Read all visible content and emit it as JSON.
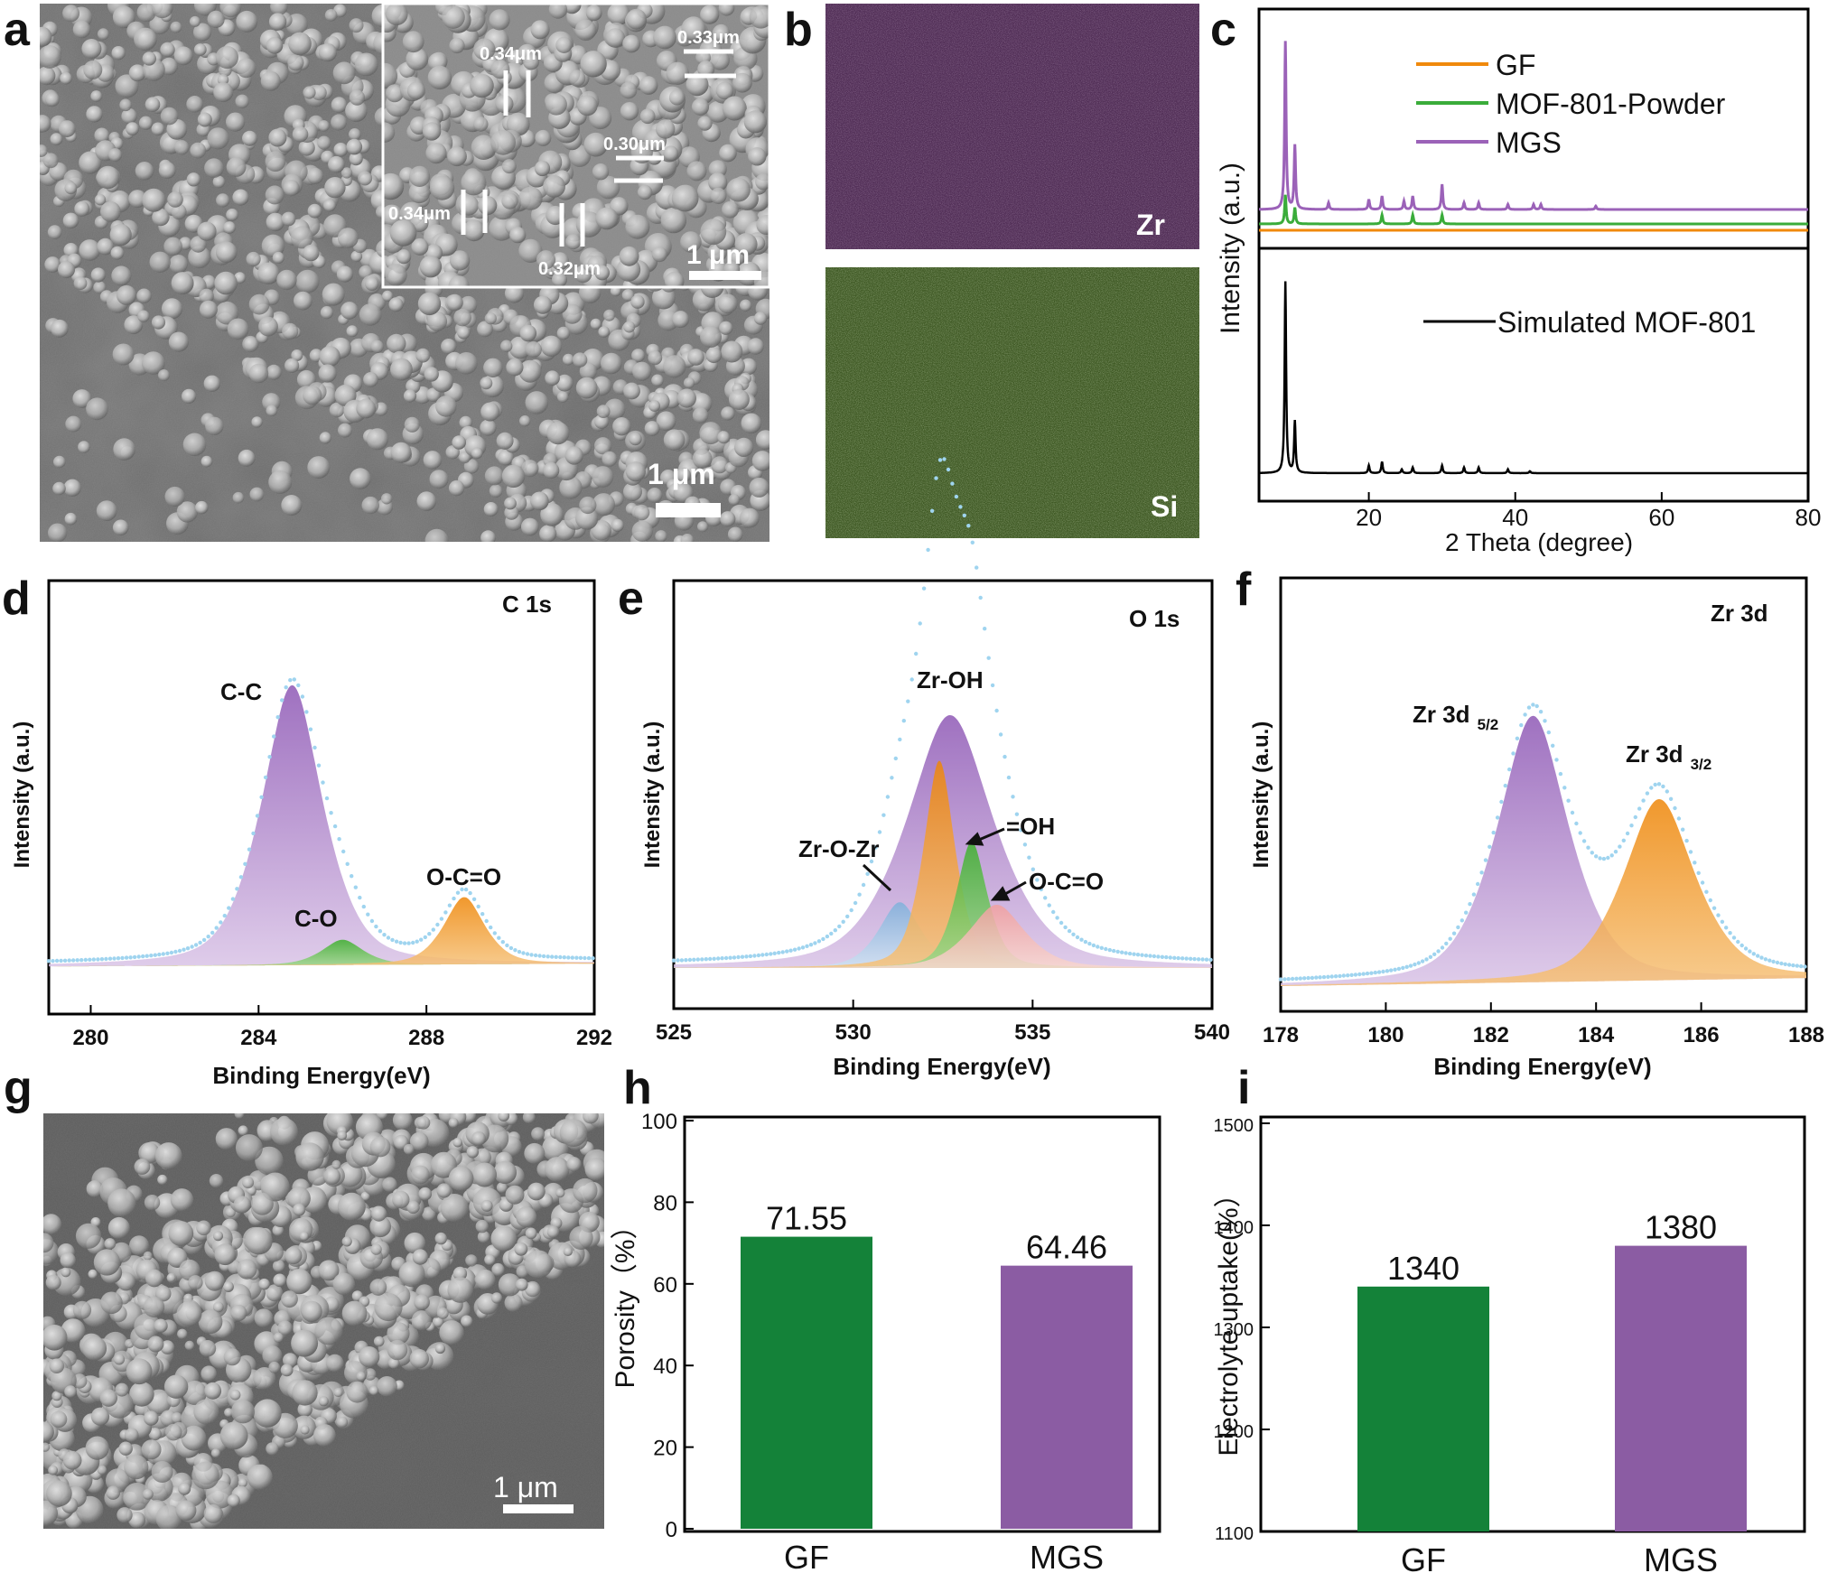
{
  "colors": {
    "gf": "#f0890c",
    "mof_powder": "#3aac3a",
    "mgs": "#9b62b8",
    "sim": "#000000",
    "bar_gf": "#148239",
    "bar_mgs": "#8b5ca3",
    "cc_fill": "#a577c5",
    "co_fill": "#58c043",
    "occ_fill": "#f0900f",
    "zrozr_fill": "#8fb8dc",
    "zroh_fill": "#9d6dc0",
    "oh_fill": "#f4b2b2",
    "fit_dots": "#9fd4ef"
  },
  "panels": {
    "a": {
      "label": "a",
      "scale": "1 μm",
      "inset_scale": "1 μm",
      "measurements": [
        "0.34μm",
        "0.33μm",
        "0.30μm",
        "0.34μm",
        "0.32μm"
      ]
    },
    "b": {
      "label": "b",
      "zr": "Zr",
      "si": "Si"
    },
    "c": {
      "label": "c"
    },
    "d": {
      "label": "d"
    },
    "e": {
      "label": "e"
    },
    "f": {
      "label": "f"
    },
    "g": {
      "label": "g",
      "scale": "1 μm"
    },
    "h": {
      "label": "h"
    },
    "i": {
      "label": "i"
    }
  },
  "chart_data": [
    {
      "panel": "c",
      "type": "line",
      "xlabel": "2 Theta (degree)",
      "ylabel": "Intensity (a.u.)",
      "xlim": [
        5,
        80
      ],
      "xticks": [
        20,
        40,
        60,
        80
      ],
      "series": [
        {
          "name": "GF",
          "peaks": []
        },
        {
          "name": "MOF-801-Powder",
          "peaks": [
            [
              8.6,
              0.16
            ],
            [
              9.9,
              0.09
            ],
            [
              21.8,
              0.05
            ],
            [
              26,
              0.05
            ],
            [
              30,
              0.05
            ]
          ]
        },
        {
          "name": "MGS",
          "peaks": [
            [
              8.6,
              1.0
            ],
            [
              9.9,
              0.38
            ],
            [
              14.5,
              0.04
            ],
            [
              20,
              0.06
            ],
            [
              21.8,
              0.08
            ],
            [
              24.8,
              0.05
            ],
            [
              26,
              0.08
            ],
            [
              30,
              0.15
            ],
            [
              33,
              0.04
            ],
            [
              35,
              0.04
            ],
            [
              39,
              0.03
            ],
            [
              42.5,
              0.03
            ],
            [
              43.5,
              0.03
            ],
            [
              51,
              0.02
            ]
          ]
        },
        {
          "name": "Simulated MOF-801",
          "peaks": [
            [
              8.6,
              1.0
            ],
            [
              9.9,
              0.27
            ],
            [
              20,
              0.04
            ],
            [
              21.8,
              0.06
            ],
            [
              24.5,
              0.02
            ],
            [
              26,
              0.03
            ],
            [
              30,
              0.04
            ],
            [
              33,
              0.03
            ],
            [
              35,
              0.03
            ],
            [
              39,
              0.02
            ],
            [
              42,
              0.01
            ]
          ]
        }
      ]
    },
    {
      "panel": "d",
      "type": "area",
      "title": "C 1s",
      "xlabel": "Binding Energy(eV)",
      "ylabel": "Intensity (a.u.)",
      "xlim": [
        279,
        292
      ],
      "xticks": [
        280,
        284,
        288,
        292
      ],
      "series": [
        {
          "name": "C-C",
          "center": 284.8,
          "height": 1.0
        },
        {
          "name": "C-O",
          "center": 286.0,
          "height": 0.09
        },
        {
          "name": "O-C=O",
          "center": 288.9,
          "height": 0.24
        }
      ]
    },
    {
      "panel": "e",
      "type": "area",
      "title": "O 1s",
      "xlabel": "Binding Energy(eV)",
      "ylabel": "Intensity (a.u.)",
      "xlim": [
        525,
        540
      ],
      "xticks": [
        525,
        530,
        535,
        540
      ],
      "series": [
        {
          "name": "Zr-OH",
          "center": 532.7,
          "height": 1.0
        },
        {
          "name": "Zr-O-Zr",
          "center": 531.3,
          "height": 0.26
        },
        {
          "name": "=OH",
          "center": 533.3,
          "height": 0.5
        },
        {
          "name": "O-C=O",
          "center": 534.0,
          "height": 0.25
        }
      ]
    },
    {
      "panel": "f",
      "type": "area",
      "title": "Zr 3d",
      "xlabel": "Binding Energy(eV)",
      "ylabel": "Intensity (a.u.)",
      "xlim": [
        178,
        188
      ],
      "xticks": [
        178,
        180,
        182,
        184,
        186,
        188
      ],
      "series": [
        {
          "name": "Zr 3d",
          "sub": "5/2",
          "center": 182.8,
          "height": 1.0
        },
        {
          "name": "Zr 3d",
          "sub": "3/2",
          "center": 185.2,
          "height": 0.68
        }
      ]
    },
    {
      "panel": "h",
      "type": "bar",
      "categories": [
        "GF",
        "MGS"
      ],
      "values": [
        71.55,
        64.46
      ],
      "labels": [
        "71.55",
        "64.46"
      ],
      "ylabel": "Porosity（%）",
      "ylim": [
        0,
        100
      ],
      "yticks": [
        0,
        20,
        40,
        60,
        80,
        100
      ]
    },
    {
      "panel": "i",
      "type": "bar",
      "categories": [
        "GF",
        "MGS"
      ],
      "values": [
        1340,
        1380
      ],
      "labels": [
        "1340",
        "1380"
      ],
      "ylabel": "Electrolyte uptake(%）",
      "ylim": [
        1100,
        1500
      ],
      "yticks": [
        1100,
        1200,
        1300,
        1400,
        1500
      ]
    }
  ]
}
